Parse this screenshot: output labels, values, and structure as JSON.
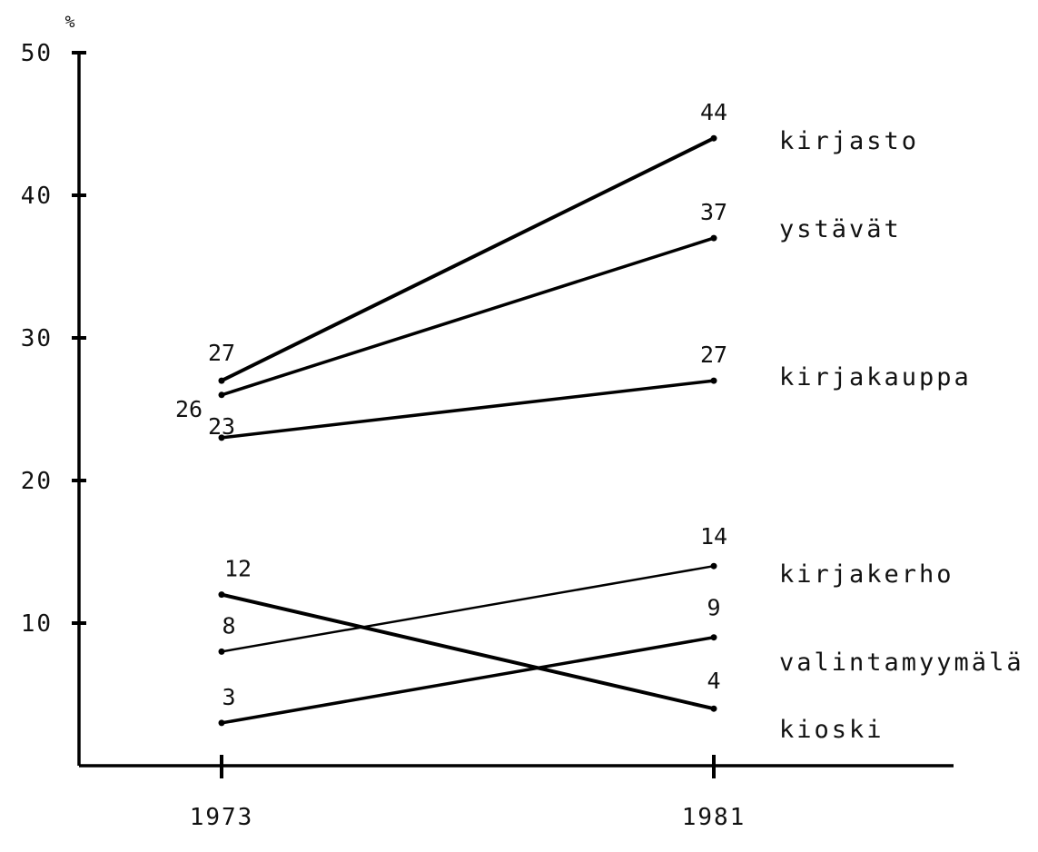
{
  "chart_data": {
    "type": "line",
    "x": [
      "1973",
      "1981"
    ],
    "ylabel": "%",
    "ylim": [
      0,
      50
    ],
    "yticks": [
      10,
      20,
      30,
      40,
      50
    ],
    "grid": false,
    "series": [
      {
        "name": "kirjasto",
        "values": [
          27,
          44
        ]
      },
      {
        "name": "ystävät",
        "values": [
          26,
          37
        ]
      },
      {
        "name": "kirjakauppa",
        "values": [
          23,
          27
        ]
      },
      {
        "name": "kirjakerho",
        "values": [
          8,
          14
        ]
      },
      {
        "name": "valintamyymälä",
        "values": [
          3,
          9
        ]
      },
      {
        "name": "kioski",
        "values": [
          12,
          4
        ]
      }
    ]
  }
}
